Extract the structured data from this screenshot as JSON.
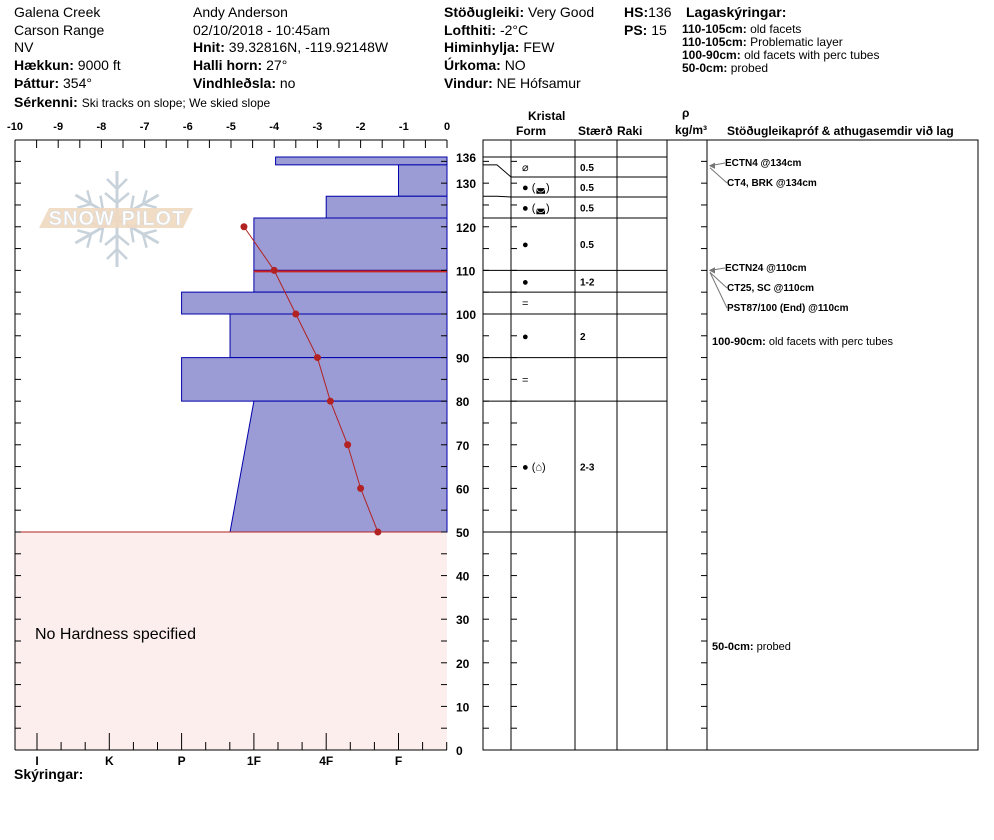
{
  "header": {
    "location": [
      "Galena Creek",
      "Carson Range",
      "NV"
    ],
    "elevation": {
      "label": "Hækkun:",
      "value": "9000 ft"
    },
    "aspect": {
      "label": "Þáttur:",
      "value": "354°"
    },
    "observer": "Andy Anderson",
    "datetime": "02/10/2018 - 10:45am",
    "coords": {
      "label": "Hnit:",
      "value": "39.32816N, -119.92148W"
    },
    "slope": {
      "label": "Halli horn:",
      "value": "27°"
    },
    "wind_loading": {
      "label": "Vindhleðsla:",
      "value": "no"
    },
    "features": {
      "label": "Sérkenni:",
      "value": "Ski tracks on slope; We skied slope"
    },
    "stability": {
      "label": "Stöðugleiki:",
      "value": "Very Good"
    },
    "air_temp": {
      "label": "Lofthiti:",
      "value": "-2°C"
    },
    "sky": {
      "label": "Himinhylja:",
      "value": "FEW"
    },
    "precip": {
      "label": "Úrkoma:",
      "value": "NO"
    },
    "wind": {
      "label": "Vindur:",
      "value": "NE Hófsamur"
    },
    "hs": {
      "label": "HS:",
      "value": "136"
    },
    "ps": {
      "label": "PS:",
      "value": "15"
    },
    "layer_notes_title": "Lagaskýringar:",
    "layer_notes": [
      {
        "range": "110-105cm:",
        "text": "old facets"
      },
      {
        "range": "110-105cm:",
        "text": "Problematic layer"
      },
      {
        "range": "100-90cm:",
        "text": "old facets with perc tubes"
      },
      {
        "range": "50-0cm:",
        "text": "probed"
      }
    ]
  },
  "logo_text": "SNOW PILOT",
  "table_headers": {
    "crystal": "Kristal",
    "form": "Form",
    "size": "Stærð",
    "moisture": "Raki",
    "rho": "ρ",
    "density_unit": "kg/m³",
    "comments": "Stöðugleikapróf & athugasemdir við lag"
  },
  "no_hardness": "No Hardness specified",
  "legend_label": "Skýringar:",
  "colors": {
    "layer_fill": "#9b9bd5",
    "layer_stroke": "#0000aa",
    "temp": "#b22222",
    "no_hardness_fill": "#fdeeee",
    "logo": "#c8d2da",
    "logo_band": "#f0d8c0"
  },
  "chart_data": {
    "type": "snow-profile",
    "temp_axis": {
      "ticks": [
        "-10",
        "-9",
        "-8",
        "-7",
        "-6",
        "-5",
        "-4",
        "-3",
        "-2",
        "-1",
        "0"
      ],
      "range": [
        -10,
        0
      ]
    },
    "depth_axis": {
      "ticks": [
        "136",
        "130",
        "120",
        "110",
        "100",
        "90",
        "80",
        "70",
        "60",
        "50",
        "40",
        "30",
        "20",
        "10",
        "0"
      ],
      "range": [
        0,
        136
      ]
    },
    "hardness_axis": {
      "labels": [
        "I",
        "K",
        "P",
        "1F",
        "4F",
        "F"
      ]
    },
    "layers": [
      {
        "top": 136,
        "bottom": 134.2,
        "hardness_top": 4.3,
        "hardness_bottom": 4.3
      },
      {
        "top": 134.2,
        "bottom": 127,
        "hardness_top": 6,
        "hardness_bottom": 6
      },
      {
        "top": 127,
        "bottom": 122,
        "hardness_top": 5,
        "hardness_bottom": 5
      },
      {
        "top": 122,
        "bottom": 110,
        "hardness_top": 4,
        "hardness_bottom": 4
      },
      {
        "top": 110,
        "bottom": 105,
        "hardness_top": 4,
        "hardness_bottom": 4
      },
      {
        "top": 105,
        "bottom": 100,
        "hardness_top": 3,
        "hardness_bottom": 3
      },
      {
        "top": 100,
        "bottom": 90,
        "hardness_top": 3.67,
        "hardness_bottom": 3.67
      },
      {
        "top": 90,
        "bottom": 80,
        "hardness_top": 3,
        "hardness_bottom": 3
      },
      {
        "top": 80,
        "bottom": 50,
        "hardness_top": 4,
        "hardness_bottom": 3.67
      }
    ],
    "problem_layer_depth": 110,
    "no_hardness_below": 50,
    "temperatures": [
      {
        "depth": 120,
        "temp": -4.7
      },
      {
        "depth": 110,
        "temp": -4.0
      },
      {
        "depth": 100,
        "temp": -3.5
      },
      {
        "depth": 90,
        "temp": -3.0
      },
      {
        "depth": 80,
        "temp": -2.7
      },
      {
        "depth": 70,
        "temp": -2.3
      },
      {
        "depth": 60,
        "temp": -2.0
      },
      {
        "depth": 50,
        "temp": -1.6
      }
    ],
    "table_rows": [
      {
        "form": "⌀",
        "size": "0.5"
      },
      {
        "form": "● (◛)",
        "size": "0.5"
      },
      {
        "form": "● (◛)",
        "size": "0.5"
      },
      {
        "form": "●",
        "size": "0.5"
      },
      {
        "form": "●",
        "size": "1-2"
      },
      {
        "form": "=",
        "size": ""
      },
      {
        "form": "●",
        "size": "2"
      },
      {
        "form": "=",
        "size": ""
      },
      {
        "form": "● (⌂)",
        "size": "2-3"
      }
    ],
    "tests": [
      {
        "text": "ECTN4 @134cm",
        "depth": 134
      },
      {
        "text": "CT4, BRK @134cm",
        "depth": 134
      },
      {
        "text": "ECTN24 @110cm",
        "depth": 110
      },
      {
        "text": "CT25, SC @110cm",
        "depth": 110
      },
      {
        "text": "PST87/100 (End) @110cm",
        "depth": 110
      }
    ],
    "comments": [
      {
        "range": "100-90cm:",
        "text": "old facets with perc tubes",
        "depth": 100
      },
      {
        "range": "50-0cm:",
        "text": "probed",
        "depth": 50
      }
    ]
  }
}
